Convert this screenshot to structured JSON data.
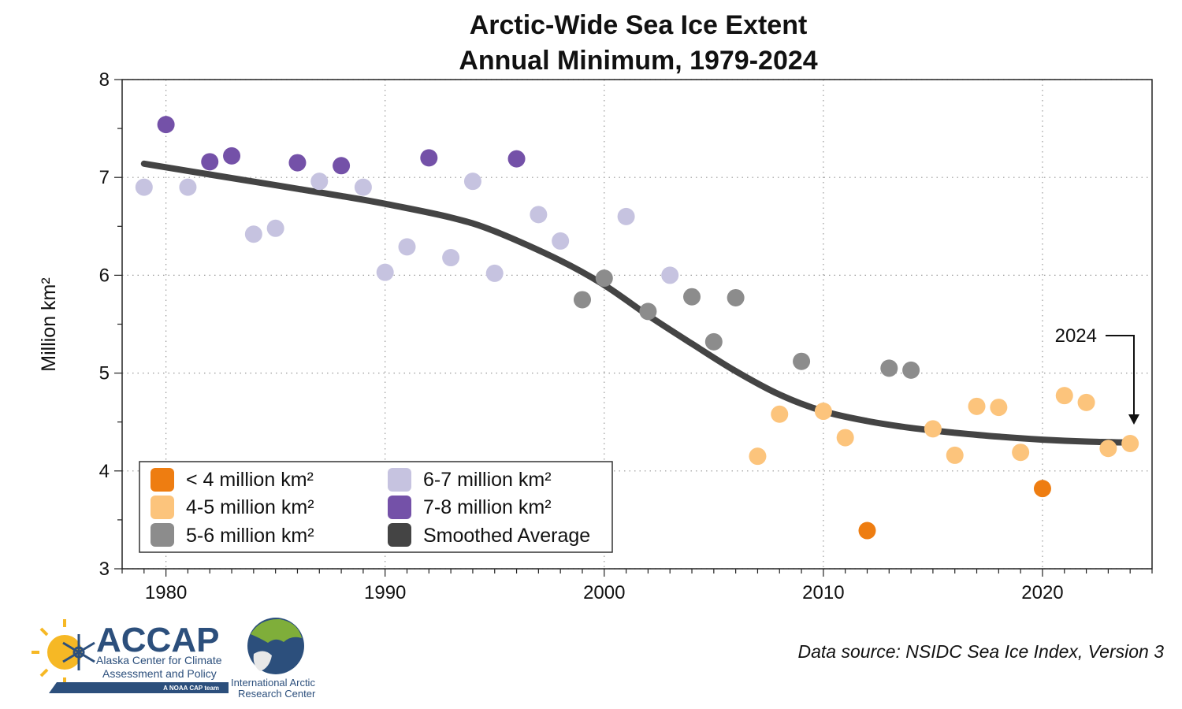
{
  "chart_data": {
    "type": "scatter",
    "title_lines": [
      "Arctic-Wide Sea Ice Extent",
      "Annual Minimum, 1979-2024"
    ],
    "ylabel": "Million km²",
    "xlabel": "",
    "xlim": [
      1978,
      2025
    ],
    "ylim": [
      3,
      8
    ],
    "x_ticks": [
      "1980",
      "1990",
      "2000",
      "2010",
      "2020"
    ],
    "y_ticks": [
      "3",
      "4",
      "5",
      "6",
      "7",
      "8"
    ],
    "grid": true,
    "legend_position": "bottom-left",
    "legend": [
      {
        "label": "< 4 million km²",
        "color": "#ee7d11"
      },
      {
        "label": "4-5 million km²",
        "color": "#fcc47c"
      },
      {
        "label": "5-6 million km²",
        "color": "#8c8c8c"
      },
      {
        "label": "6-7 million km²",
        "color": "#c6c3e0"
      },
      {
        "label": "7-8 million km²",
        "color": "#7451a8"
      },
      {
        "label": "Smoothed Average",
        "color": "#444444"
      }
    ],
    "points": [
      {
        "x": 1979,
        "y": 6.9
      },
      {
        "x": 1980,
        "y": 7.54
      },
      {
        "x": 1981,
        "y": 6.9
      },
      {
        "x": 1982,
        "y": 7.16
      },
      {
        "x": 1983,
        "y": 7.22
      },
      {
        "x": 1984,
        "y": 6.42
      },
      {
        "x": 1985,
        "y": 6.48
      },
      {
        "x": 1986,
        "y": 7.15
      },
      {
        "x": 1987,
        "y": 6.96
      },
      {
        "x": 1988,
        "y": 7.12
      },
      {
        "x": 1989,
        "y": 6.9
      },
      {
        "x": 1990,
        "y": 6.03
      },
      {
        "x": 1991,
        "y": 6.29
      },
      {
        "x": 1992,
        "y": 7.2
      },
      {
        "x": 1993,
        "y": 6.18
      },
      {
        "x": 1994,
        "y": 6.96
      },
      {
        "x": 1995,
        "y": 6.02
      },
      {
        "x": 1996,
        "y": 7.19
      },
      {
        "x": 1997,
        "y": 6.62
      },
      {
        "x": 1998,
        "y": 6.35
      },
      {
        "x": 1999,
        "y": 5.75
      },
      {
        "x": 2000,
        "y": 5.97
      },
      {
        "x": 2001,
        "y": 6.6
      },
      {
        "x": 2002,
        "y": 5.63
      },
      {
        "x": 2003,
        "y": 6.0
      },
      {
        "x": 2004,
        "y": 5.78
      },
      {
        "x": 2005,
        "y": 5.32
      },
      {
        "x": 2006,
        "y": 5.77
      },
      {
        "x": 2007,
        "y": 4.15
      },
      {
        "x": 2008,
        "y": 4.58
      },
      {
        "x": 2009,
        "y": 5.12
      },
      {
        "x": 2010,
        "y": 4.61
      },
      {
        "x": 2011,
        "y": 4.34
      },
      {
        "x": 2012,
        "y": 3.39
      },
      {
        "x": 2013,
        "y": 5.05
      },
      {
        "x": 2014,
        "y": 5.03
      },
      {
        "x": 2015,
        "y": 4.43
      },
      {
        "x": 2016,
        "y": 4.16
      },
      {
        "x": 2017,
        "y": 4.66
      },
      {
        "x": 2018,
        "y": 4.65
      },
      {
        "x": 2019,
        "y": 4.19
      },
      {
        "x": 2020,
        "y": 3.82
      },
      {
        "x": 2021,
        "y": 4.77
      },
      {
        "x": 2022,
        "y": 4.7
      },
      {
        "x": 2023,
        "y": 4.23
      },
      {
        "x": 2024,
        "y": 4.28
      }
    ],
    "smoothed": {
      "name": "Smoothed Average",
      "x": [
        1979,
        1982,
        1985,
        1988,
        1990,
        1993,
        1995,
        1998,
        2000,
        2002,
        2004,
        2006,
        2008,
        2010,
        2012,
        2014,
        2016,
        2018,
        2020,
        2022,
        2024
      ],
      "y": [
        7.14,
        7.03,
        6.92,
        6.81,
        6.73,
        6.59,
        6.45,
        6.15,
        5.9,
        5.59,
        5.3,
        5.02,
        4.78,
        4.61,
        4.51,
        4.44,
        4.39,
        4.35,
        4.32,
        4.3,
        4.29
      ]
    },
    "annotation": {
      "text": "2024",
      "target_x": 2024,
      "target_y": 4.28
    }
  },
  "source_text": "Data source: NSIDC Sea Ice Index, Version 3",
  "logos": {
    "accap_big": "ACCAP",
    "accap_line1": "Alaska Center for Climate",
    "accap_line2": "Assessment and Policy",
    "accap_tag": "A NOAA CAP team",
    "iarc_line1": "International Arctic",
    "iarc_line2": "Research Center"
  }
}
